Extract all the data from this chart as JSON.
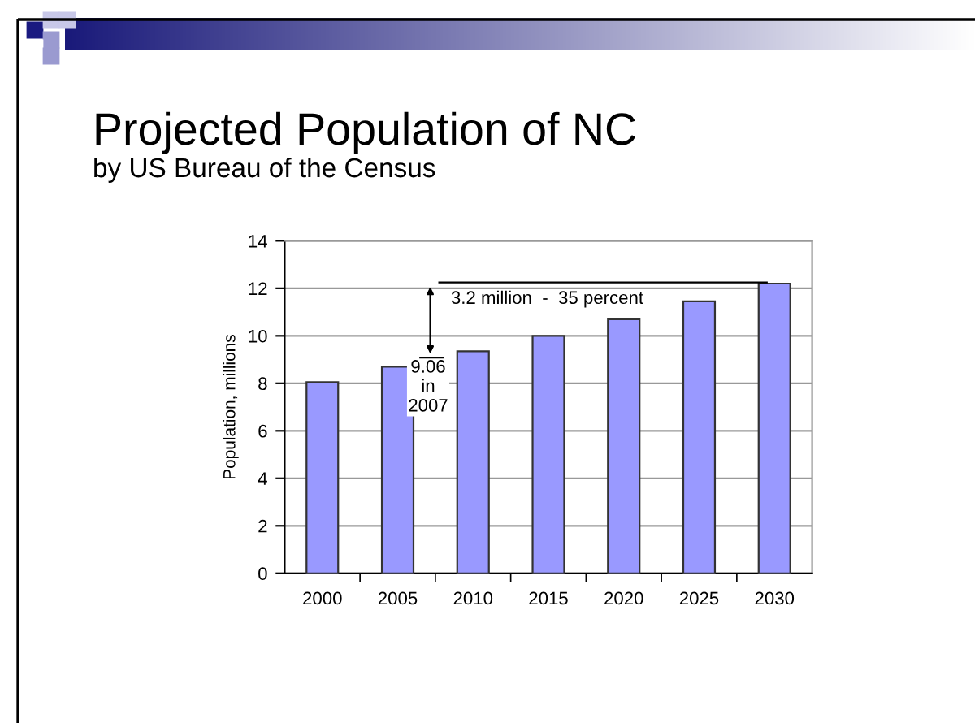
{
  "chart_data": {
    "type": "bar",
    "title": "Projected Population of NC",
    "subtitle": "by US Bureau of the Census",
    "ylabel": "Population, millions",
    "categories": [
      "2000",
      "2005",
      "2010",
      "2015",
      "2020",
      "2025",
      "2030"
    ],
    "values": [
      8.05,
      8.7,
      9.35,
      10.0,
      10.7,
      11.45,
      12.2
    ],
    "color": "#9999ff",
    "ylim": [
      0,
      14
    ],
    "yticks": [
      0,
      2,
      4,
      6,
      8,
      10,
      12,
      14
    ],
    "grid": "y",
    "annotations": [
      "3.2 million  -  35 percent",
      "9.06\nin\n2007"
    ]
  }
}
